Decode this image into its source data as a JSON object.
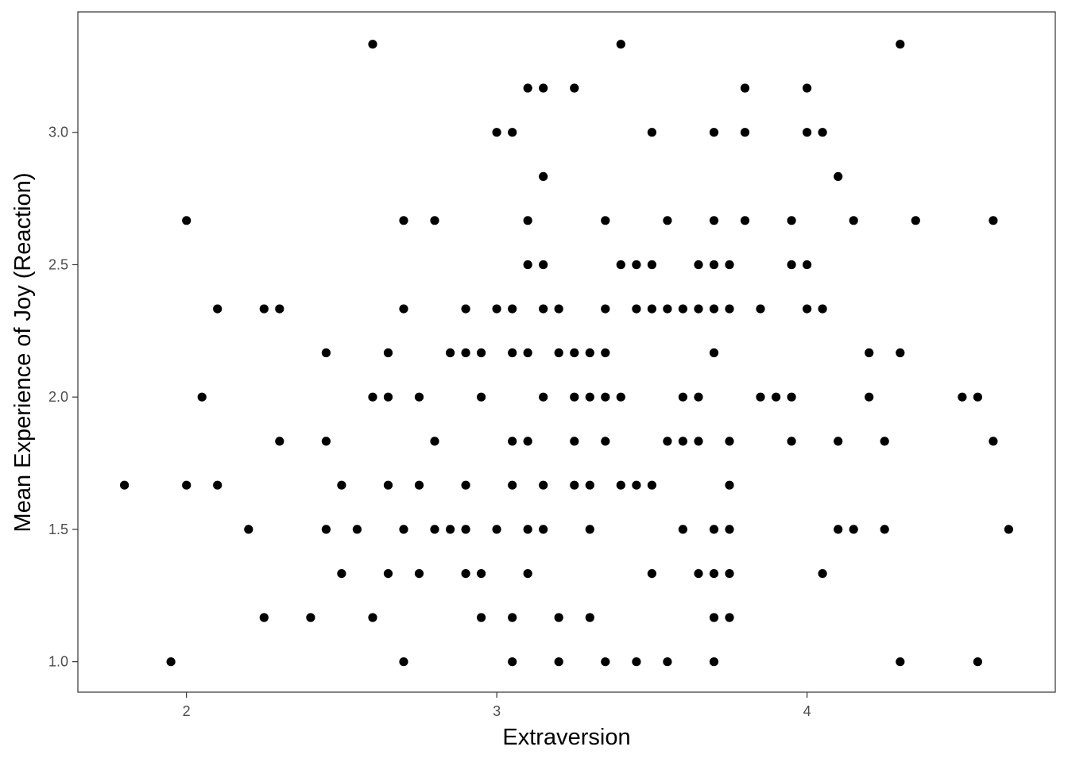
{
  "chart_data": {
    "type": "scatter",
    "title": "",
    "xlabel": "Extraversion",
    "ylabel": "Mean Experience of Joy (Reaction)",
    "xlim": [
      1.65,
      4.8
    ],
    "ylim": [
      0.885,
      3.455
    ],
    "x_ticks": [
      2,
      3,
      4
    ],
    "x_tick_labels": [
      "2",
      "3",
      "4"
    ],
    "y_ticks": [
      1.0,
      1.5,
      2.0,
      2.5,
      3.0
    ],
    "y_tick_labels": [
      "1.0",
      "1.5",
      "2.0",
      "2.5",
      "3.0"
    ],
    "grid": false,
    "legend": "none",
    "marker_color": "#000000",
    "points": [
      [
        1.8,
        1.667
      ],
      [
        1.95,
        1.0
      ],
      [
        2.0,
        2.667
      ],
      [
        2.0,
        1.667
      ],
      [
        2.05,
        2.0
      ],
      [
        2.1,
        2.333
      ],
      [
        2.1,
        1.667
      ],
      [
        2.2,
        1.5
      ],
      [
        2.25,
        2.333
      ],
      [
        2.25,
        1.167
      ],
      [
        2.3,
        2.333
      ],
      [
        2.3,
        1.833
      ],
      [
        2.4,
        1.167
      ],
      [
        2.45,
        2.167
      ],
      [
        2.45,
        1.833
      ],
      [
        2.45,
        1.5
      ],
      [
        2.5,
        1.667
      ],
      [
        2.5,
        1.333
      ],
      [
        2.55,
        1.5
      ],
      [
        2.6,
        3.333
      ],
      [
        2.6,
        2.0
      ],
      [
        2.6,
        1.167
      ],
      [
        2.65,
        2.167
      ],
      [
        2.65,
        2.0
      ],
      [
        2.65,
        1.667
      ],
      [
        2.65,
        1.333
      ],
      [
        2.7,
        2.667
      ],
      [
        2.7,
        2.333
      ],
      [
        2.7,
        1.5
      ],
      [
        2.7,
        1.0
      ],
      [
        2.75,
        2.0
      ],
      [
        2.75,
        1.667
      ],
      [
        2.75,
        1.333
      ],
      [
        2.8,
        2.667
      ],
      [
        2.8,
        1.833
      ],
      [
        2.8,
        1.5
      ],
      [
        2.85,
        2.167
      ],
      [
        2.85,
        1.5
      ],
      [
        2.9,
        2.333
      ],
      [
        2.9,
        2.167
      ],
      [
        2.9,
        1.667
      ],
      [
        2.9,
        1.5
      ],
      [
        2.9,
        1.333
      ],
      [
        2.95,
        2.167
      ],
      [
        2.95,
        2.0
      ],
      [
        2.95,
        1.333
      ],
      [
        2.95,
        1.167
      ],
      [
        3.0,
        3.0
      ],
      [
        3.0,
        2.333
      ],
      [
        3.0,
        1.5
      ],
      [
        3.05,
        3.0
      ],
      [
        3.05,
        2.333
      ],
      [
        3.05,
        2.167
      ],
      [
        3.05,
        1.833
      ],
      [
        3.05,
        1.667
      ],
      [
        3.05,
        1.167
      ],
      [
        3.05,
        1.0
      ],
      [
        3.1,
        3.167
      ],
      [
        3.1,
        2.667
      ],
      [
        3.1,
        2.5
      ],
      [
        3.1,
        2.167
      ],
      [
        3.1,
        1.833
      ],
      [
        3.1,
        1.5
      ],
      [
        3.1,
        1.333
      ],
      [
        3.15,
        3.167
      ],
      [
        3.15,
        2.833
      ],
      [
        3.15,
        2.5
      ],
      [
        3.15,
        2.333
      ],
      [
        3.15,
        2.0
      ],
      [
        3.15,
        1.667
      ],
      [
        3.15,
        1.5
      ],
      [
        3.2,
        2.333
      ],
      [
        3.2,
        2.167
      ],
      [
        3.2,
        1.167
      ],
      [
        3.2,
        1.0
      ],
      [
        3.25,
        3.167
      ],
      [
        3.25,
        2.167
      ],
      [
        3.25,
        2.0
      ],
      [
        3.25,
        1.833
      ],
      [
        3.25,
        1.667
      ],
      [
        3.3,
        2.167
      ],
      [
        3.3,
        2.0
      ],
      [
        3.3,
        1.667
      ],
      [
        3.3,
        1.5
      ],
      [
        3.3,
        1.167
      ],
      [
        3.35,
        2.667
      ],
      [
        3.35,
        2.333
      ],
      [
        3.35,
        2.167
      ],
      [
        3.35,
        2.0
      ],
      [
        3.35,
        1.833
      ],
      [
        3.35,
        1.0
      ],
      [
        3.4,
        3.333
      ],
      [
        3.4,
        2.5
      ],
      [
        3.4,
        2.0
      ],
      [
        3.4,
        1.667
      ],
      [
        3.45,
        2.5
      ],
      [
        3.45,
        2.333
      ],
      [
        3.45,
        1.667
      ],
      [
        3.45,
        1.0
      ],
      [
        3.5,
        3.0
      ],
      [
        3.5,
        2.5
      ],
      [
        3.5,
        2.333
      ],
      [
        3.5,
        1.667
      ],
      [
        3.5,
        1.333
      ],
      [
        3.55,
        2.667
      ],
      [
        3.55,
        2.333
      ],
      [
        3.55,
        1.833
      ],
      [
        3.55,
        1.0
      ],
      [
        3.6,
        2.333
      ],
      [
        3.6,
        2.0
      ],
      [
        3.6,
        1.833
      ],
      [
        3.6,
        1.5
      ],
      [
        3.65,
        2.5
      ],
      [
        3.65,
        2.333
      ],
      [
        3.65,
        2.0
      ],
      [
        3.65,
        1.833
      ],
      [
        3.65,
        1.333
      ],
      [
        3.7,
        3.0
      ],
      [
        3.7,
        2.667
      ],
      [
        3.7,
        2.5
      ],
      [
        3.7,
        2.333
      ],
      [
        3.7,
        2.167
      ],
      [
        3.7,
        1.5
      ],
      [
        3.7,
        1.333
      ],
      [
        3.7,
        1.167
      ],
      [
        3.7,
        1.0
      ],
      [
        3.75,
        2.5
      ],
      [
        3.75,
        2.333
      ],
      [
        3.75,
        1.833
      ],
      [
        3.75,
        1.667
      ],
      [
        3.75,
        1.5
      ],
      [
        3.75,
        1.333
      ],
      [
        3.75,
        1.167
      ],
      [
        3.8,
        3.167
      ],
      [
        3.8,
        3.0
      ],
      [
        3.8,
        2.667
      ],
      [
        3.85,
        2.333
      ],
      [
        3.85,
        2.0
      ],
      [
        3.9,
        2.0
      ],
      [
        3.95,
        2.667
      ],
      [
        3.95,
        2.5
      ],
      [
        3.95,
        2.0
      ],
      [
        3.95,
        1.833
      ],
      [
        4.0,
        3.167
      ],
      [
        4.0,
        3.0
      ],
      [
        4.0,
        2.5
      ],
      [
        4.0,
        2.333
      ],
      [
        4.05,
        3.0
      ],
      [
        4.05,
        2.333
      ],
      [
        4.05,
        1.333
      ],
      [
        4.1,
        2.833
      ],
      [
        4.1,
        1.833
      ],
      [
        4.1,
        1.5
      ],
      [
        4.15,
        2.667
      ],
      [
        4.15,
        1.5
      ],
      [
        4.2,
        2.167
      ],
      [
        4.2,
        2.0
      ],
      [
        4.25,
        1.833
      ],
      [
        4.25,
        1.5
      ],
      [
        4.3,
        3.333
      ],
      [
        4.3,
        2.167
      ],
      [
        4.3,
        1.0
      ],
      [
        4.35,
        2.667
      ],
      [
        4.5,
        2.0
      ],
      [
        4.55,
        2.0
      ],
      [
        4.55,
        1.0
      ],
      [
        4.6,
        2.667
      ],
      [
        4.6,
        1.833
      ],
      [
        4.65,
        1.5
      ]
    ]
  }
}
